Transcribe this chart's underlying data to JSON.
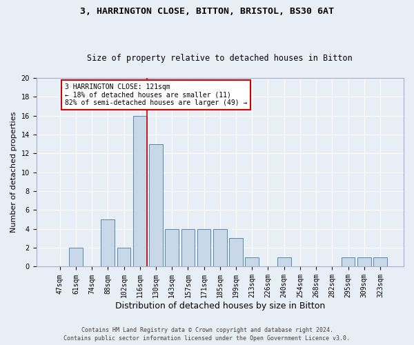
{
  "title1": "3, HARRINGTON CLOSE, BITTON, BRISTOL, BS30 6AT",
  "title2": "Size of property relative to detached houses in Bitton",
  "xlabel": "Distribution of detached houses by size in Bitton",
  "ylabel": "Number of detached properties",
  "footer1": "Contains HM Land Registry data © Crown copyright and database right 2024.",
  "footer2": "Contains public sector information licensed under the Open Government Licence v3.0.",
  "categories": [
    "47sqm",
    "61sqm",
    "74sqm",
    "88sqm",
    "102sqm",
    "116sqm",
    "130sqm",
    "143sqm",
    "157sqm",
    "171sqm",
    "185sqm",
    "199sqm",
    "213sqm",
    "226sqm",
    "240sqm",
    "254sqm",
    "268sqm",
    "282sqm",
    "295sqm",
    "309sqm",
    "323sqm"
  ],
  "values": [
    0,
    2,
    0,
    5,
    2,
    16,
    13,
    4,
    4,
    4,
    4,
    3,
    1,
    0,
    1,
    0,
    0,
    0,
    1,
    1,
    1
  ],
  "bar_color": "#c8d8e8",
  "bar_edge_color": "#5588aa",
  "red_line_x": 5.42,
  "annotation_text": "3 HARRINGTON CLOSE: 121sqm\n← 18% of detached houses are smaller (11)\n82% of semi-detached houses are larger (49) →",
  "annotation_box_color": "#ffffff",
  "annotation_box_edge_color": "#cc0000",
  "ylim": [
    0,
    20
  ],
  "yticks": [
    0,
    2,
    4,
    6,
    8,
    10,
    12,
    14,
    16,
    18,
    20
  ],
  "background_color": "#e8eef6",
  "grid_color": "#ffffff",
  "title1_fontsize": 9.5,
  "title2_fontsize": 8.5,
  "xlabel_fontsize": 9,
  "ylabel_fontsize": 8,
  "tick_fontsize": 7,
  "footer_fontsize": 6,
  "annot_fontsize": 7
}
